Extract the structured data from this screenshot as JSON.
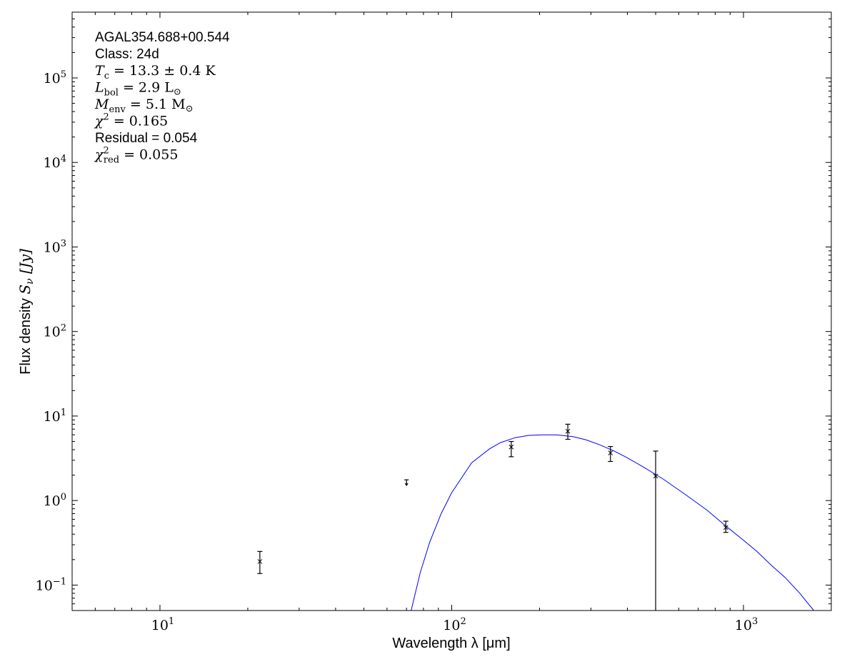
{
  "chart_data": {
    "type": "scatter",
    "title": "",
    "xlabel": "Wavelength λ [μm]",
    "ylabel_prefix": "Flux density ",
    "ylabel_math": "S",
    "ylabel_sub": "ν",
    "ylabel_unit": " [Jy]",
    "xscale": "log",
    "yscale": "log",
    "xlim": [
      5,
      2000
    ],
    "ylim": [
      0.05,
      600000
    ],
    "grid": false,
    "x_ticks": [
      {
        "value": 10,
        "base": "10",
        "exp": "1"
      },
      {
        "value": 100,
        "base": "10",
        "exp": "2"
      },
      {
        "value": 1000,
        "base": "10",
        "exp": "3"
      }
    ],
    "y_ticks": [
      {
        "value": 0.1,
        "base": "10",
        "exp": "−1"
      },
      {
        "value": 1,
        "base": "10",
        "exp": "0"
      },
      {
        "value": 10,
        "base": "10",
        "exp": "1"
      },
      {
        "value": 100,
        "base": "10",
        "exp": "2"
      },
      {
        "value": 1000,
        "base": "10",
        "exp": "3"
      },
      {
        "value": 10000,
        "base": "10",
        "exp": "4"
      },
      {
        "value": 100000,
        "base": "10",
        "exp": "5"
      }
    ],
    "annotations": [
      {
        "style": "sans",
        "text": "AGAL354.688+00.544"
      },
      {
        "style": "sans",
        "text": "Class: 24d"
      },
      {
        "style": "math",
        "sym": "T",
        "sub": "c",
        "sup": "",
        "rest": " = 13.3 ± 0.4 K",
        "sun": ""
      },
      {
        "style": "math",
        "sym": "L",
        "sub": "bol",
        "sup": "",
        "rest": " = 2.9 L",
        "sun": "⊙"
      },
      {
        "style": "math",
        "sym": "M",
        "sub": "env",
        "sup": "",
        "rest": " = 5.1 M",
        "sun": "⊙"
      },
      {
        "style": "math",
        "sym": "χ",
        "sub": "",
        "sup": "2",
        "rest": " = 0.165",
        "sun": ""
      },
      {
        "style": "sans",
        "text": "Residual = 0.054"
      },
      {
        "style": "math",
        "sym": "χ",
        "sub": "red",
        "sup": "2",
        "rest": " = 0.055",
        "sun": ""
      }
    ],
    "points": [
      {
        "x": 22,
        "y": 0.19,
        "err_high": 0.25,
        "err_low": 0.137,
        "upper_limit": false
      },
      {
        "x": 70,
        "y": 1.76,
        "err_high": null,
        "err_low": null,
        "upper_limit": true
      },
      {
        "x": 160,
        "y": 4.3,
        "err_high": 5.0,
        "err_low": 3.3,
        "upper_limit": false
      },
      {
        "x": 250,
        "y": 6.6,
        "err_high": 8.0,
        "err_low": 5.3,
        "upper_limit": false
      },
      {
        "x": 350,
        "y": 3.66,
        "err_high": 4.36,
        "err_low": 2.9,
        "upper_limit": false
      },
      {
        "x": 500,
        "y": 1.95,
        "err_high": 3.85,
        "err_low": 0.01,
        "upper_limit": false
      },
      {
        "x": 870,
        "y": 0.48,
        "err_high": 0.57,
        "err_low": 0.42,
        "upper_limit": false
      }
    ],
    "model_curve": {
      "color": "#0000ff",
      "x": [
        72.6,
        78,
        84,
        92,
        100,
        117,
        135,
        147,
        165,
        184,
        205,
        230,
        260,
        288,
        320,
        361,
        400,
        453,
        530,
        634,
        750,
        870,
        1000,
        1112,
        1250,
        1393,
        1560,
        1742
      ],
      "y": [
        0.05,
        0.14,
        0.32,
        0.7,
        1.24,
        2.8,
        4.1,
        4.85,
        5.55,
        5.9,
        6.0,
        5.97,
        5.7,
        5.24,
        4.6,
        3.84,
        3.2,
        2.5,
        1.8,
        1.17,
        0.77,
        0.5,
        0.34,
        0.25,
        0.17,
        0.122,
        0.08,
        0.05
      ]
    },
    "marker_color": "#000000"
  }
}
